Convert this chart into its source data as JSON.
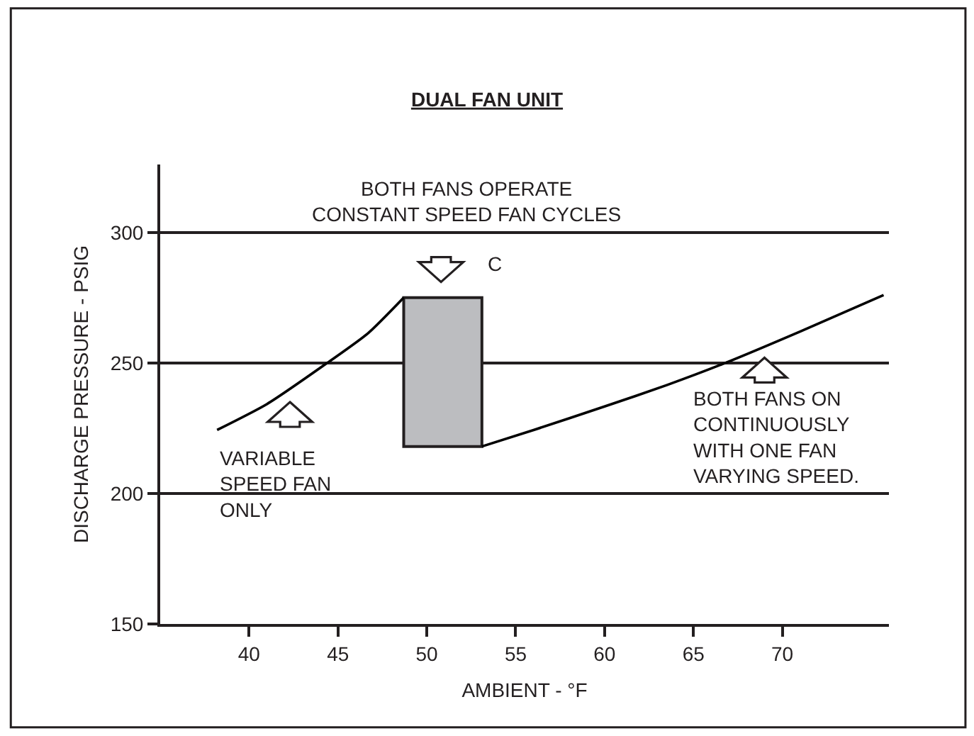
{
  "chart_data": {
    "type": "line",
    "title": "DUAL FAN UNIT",
    "xlabel": "AMBIENT - °F",
    "ylabel": "DISCHARGE PRESSURE - PSIG",
    "xlim": [
      35,
      76
    ],
    "xticks": [
      40,
      45,
      50,
      55,
      60,
      65,
      70
    ],
    "ylim": [
      150,
      326
    ],
    "yticks": [
      150,
      200,
      250,
      300
    ],
    "grid": "y",
    "marker": "none",
    "line_style": "solid",
    "series": [
      {
        "color": "#000000",
        "x": [
          38.2,
          41,
          44.4,
          46.7,
          48.7
        ],
        "values": [
          224.3,
          234.2,
          250,
          261.4,
          275
        ]
      },
      {
        "type": "bar",
        "color": "#bcbdc0",
        "x": [
          50.9
        ],
        "base": [
          218
        ],
        "values": [
          57
        ]
      },
      {
        "color": "#000000",
        "x": [
          53.1,
          56.1,
          60,
          63.5,
          66.8,
          71,
          75.7
        ],
        "values": [
          218,
          224.5,
          233.3,
          241.5,
          250,
          262,
          276
        ]
      }
    ],
    "annotations": [
      "BOTH FANS OPERATE\nCONSTANT SPEED FAN CYCLES",
      "C",
      "VARIABLE\nSPEED FAN\nONLY",
      "BOTH FANS ON\nCONTINUOUSLY\nWITH ONE FAN\nVARYING SPEED."
    ]
  }
}
